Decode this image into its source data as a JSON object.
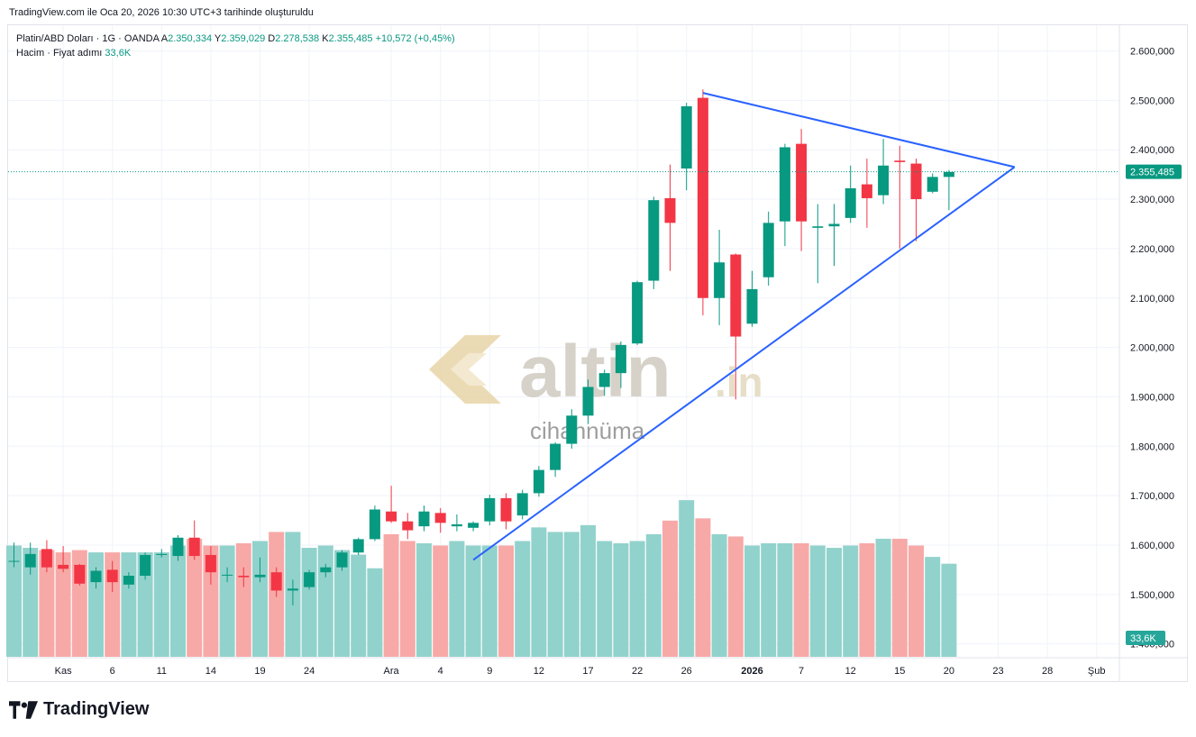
{
  "header": {
    "text": "TradingView.com ile Oca 20, 2026 10:30 UTC+3 tarihinde oluşturuldu"
  },
  "legend": {
    "symbol": "Platin/ABD Doları · 1G · OANDA",
    "a_label": "A",
    "a_value": "2.350,334",
    "y_label": "Y",
    "y_value": "2.359,029",
    "d_label": "D",
    "d_value": "2.278,538",
    "k_label": "K",
    "k_value": "2.355,485",
    "change": "+10,572 (+0,45%)",
    "volume_label": "Hacim · Fiyat adımı",
    "volume_value": "33,6K"
  },
  "price_badge": "2.355,485",
  "volume_badge": "33,6K",
  "watermark": {
    "brand": "altin",
    "suffix": ".in",
    "sub": "cihannüma"
  },
  "footer": {
    "brand": "TradingView"
  },
  "colors": {
    "up": "#089981",
    "down": "#f23645",
    "up_volume": "#92d2cc",
    "down_volume": "#f7a9a7",
    "trendline": "#2962ff"
  },
  "chart_data": {
    "type": "candlestick",
    "y_ticks": [
      "2.600,000",
      "2.500,000",
      "2.400,000",
      "2.300,000",
      "2.200,000",
      "2.100,000",
      "2.000,000",
      "1.900,000",
      "1.800,000",
      "1.700,000",
      "1.600,000",
      "1.500,000",
      "1.400,000"
    ],
    "y_tick_values": [
      2600,
      2500,
      2400,
      2300,
      2200,
      2100,
      2000,
      1900,
      1800,
      1700,
      1600,
      1500,
      1400
    ],
    "ylim": [
      1370,
      2640
    ],
    "x_ticks": [
      {
        "label": "Kas",
        "index": 3
      },
      {
        "label": "6",
        "index": 6
      },
      {
        "label": "11",
        "index": 9
      },
      {
        "label": "14",
        "index": 12
      },
      {
        "label": "19",
        "index": 15
      },
      {
        "label": "24",
        "index": 18
      },
      {
        "label": "Ara",
        "index": 23
      },
      {
        "label": "4",
        "index": 26
      },
      {
        "label": "9",
        "index": 29
      },
      {
        "label": "12",
        "index": 32
      },
      {
        "label": "17",
        "index": 35
      },
      {
        "label": "22",
        "index": 38
      },
      {
        "label": "26",
        "index": 41
      },
      {
        "label": "2026",
        "index": 45
      },
      {
        "label": "7",
        "index": 48
      },
      {
        "label": "12",
        "index": 51
      },
      {
        "label": "15",
        "index": 54
      },
      {
        "label": "20",
        "index": 57
      },
      {
        "label": "23",
        "index": 60
      },
      {
        "label": "28",
        "index": 63
      },
      {
        "label": "Şub",
        "index": 66
      }
    ],
    "last_price": 2355.485,
    "candles": [
      {
        "o": 1568,
        "h": 1605,
        "l": 1555,
        "c": 1568,
        "v": 49
      },
      {
        "o": 1555,
        "h": 1605,
        "l": 1540,
        "c": 1582,
        "v": 48
      },
      {
        "o": 1592,
        "h": 1610,
        "l": 1545,
        "c": 1555,
        "v": 47
      },
      {
        "o": 1560,
        "h": 1598,
        "l": 1545,
        "c": 1552,
        "v": 46
      },
      {
        "o": 1560,
        "h": 1562,
        "l": 1518,
        "c": 1522,
        "v": 47
      },
      {
        "o": 1525,
        "h": 1555,
        "l": 1512,
        "c": 1548,
        "v": 46
      },
      {
        "o": 1550,
        "h": 1568,
        "l": 1505,
        "c": 1525,
        "v": 46
      },
      {
        "o": 1520,
        "h": 1545,
        "l": 1512,
        "c": 1538,
        "v": 46
      },
      {
        "o": 1538,
        "h": 1585,
        "l": 1530,
        "c": 1580,
        "v": 46
      },
      {
        "o": 1580,
        "h": 1592,
        "l": 1575,
        "c": 1582,
        "v": 46
      },
      {
        "o": 1578,
        "h": 1620,
        "l": 1568,
        "c": 1615,
        "v": 49
      },
      {
        "o": 1615,
        "h": 1650,
        "l": 1570,
        "c": 1578,
        "v": 52
      },
      {
        "o": 1580,
        "h": 1598,
        "l": 1520,
        "c": 1545,
        "v": 49
      },
      {
        "o": 1540,
        "h": 1555,
        "l": 1525,
        "c": 1540,
        "v": 49
      },
      {
        "o": 1538,
        "h": 1555,
        "l": 1515,
        "c": 1535,
        "v": 50
      },
      {
        "o": 1535,
        "h": 1575,
        "l": 1525,
        "c": 1540,
        "v": 51
      },
      {
        "o": 1545,
        "h": 1555,
        "l": 1495,
        "c": 1508,
        "v": 55
      },
      {
        "o": 1508,
        "h": 1530,
        "l": 1478,
        "c": 1512,
        "v": 55
      },
      {
        "o": 1515,
        "h": 1550,
        "l": 1510,
        "c": 1545,
        "v": 48
      },
      {
        "o": 1545,
        "h": 1562,
        "l": 1535,
        "c": 1555,
        "v": 49
      },
      {
        "o": 1555,
        "h": 1590,
        "l": 1548,
        "c": 1585,
        "v": 47
      },
      {
        "o": 1585,
        "h": 1615,
        "l": 1580,
        "c": 1612,
        "v": 45
      },
      {
        "o": 1612,
        "h": 1680,
        "l": 1608,
        "c": 1672,
        "v": 39
      },
      {
        "o": 1668,
        "h": 1720,
        "l": 1645,
        "c": 1648,
        "v": 54
      },
      {
        "o": 1648,
        "h": 1665,
        "l": 1612,
        "c": 1630,
        "v": 51
      },
      {
        "o": 1638,
        "h": 1680,
        "l": 1628,
        "c": 1668,
        "v": 50
      },
      {
        "o": 1665,
        "h": 1675,
        "l": 1625,
        "c": 1645,
        "v": 49
      },
      {
        "o": 1638,
        "h": 1662,
        "l": 1628,
        "c": 1642,
        "v": 51
      },
      {
        "o": 1635,
        "h": 1648,
        "l": 1628,
        "c": 1645,
        "v": 49
      },
      {
        "o": 1648,
        "h": 1702,
        "l": 1640,
        "c": 1695,
        "v": 49
      },
      {
        "o": 1695,
        "h": 1705,
        "l": 1632,
        "c": 1648,
        "v": 49
      },
      {
        "o": 1660,
        "h": 1712,
        "l": 1652,
        "c": 1705,
        "v": 51
      },
      {
        "o": 1705,
        "h": 1760,
        "l": 1698,
        "c": 1752,
        "v": 57
      },
      {
        "o": 1752,
        "h": 1808,
        "l": 1738,
        "c": 1805,
        "v": 55
      },
      {
        "o": 1805,
        "h": 1875,
        "l": 1795,
        "c": 1862,
        "v": 55
      },
      {
        "o": 1862,
        "h": 1935,
        "l": 1845,
        "c": 1920,
        "v": 58
      },
      {
        "o": 1920,
        "h": 1955,
        "l": 1902,
        "c": 1948,
        "v": 51
      },
      {
        "o": 1948,
        "h": 2012,
        "l": 1918,
        "c": 2005,
        "v": 50
      },
      {
        "o": 2008,
        "h": 2135,
        "l": 2005,
        "c": 2132,
        "v": 51
      },
      {
        "o": 2135,
        "h": 2305,
        "l": 2118,
        "c": 2298,
        "v": 54
      },
      {
        "o": 2302,
        "h": 2370,
        "l": 2155,
        "c": 2252,
        "v": 60
      },
      {
        "o": 2362,
        "h": 2495,
        "l": 2318,
        "c": 2488,
        "v": 69
      },
      {
        "o": 2505,
        "h": 2522,
        "l": 2065,
        "c": 2100,
        "v": 61
      },
      {
        "o": 2100,
        "h": 2238,
        "l": 2045,
        "c": 2172,
        "v": 54
      },
      {
        "o": 2188,
        "h": 2190,
        "l": 1895,
        "c": 2022,
        "v": 53
      },
      {
        "o": 2048,
        "h": 2155,
        "l": 2042,
        "c": 2118,
        "v": 49
      },
      {
        "o": 2142,
        "h": 2275,
        "l": 2125,
        "c": 2252,
        "v": 50
      },
      {
        "o": 2255,
        "h": 2412,
        "l": 2205,
        "c": 2405,
        "v": 50
      },
      {
        "o": 2412,
        "h": 2442,
        "l": 2195,
        "c": 2255,
        "v": 50
      },
      {
        "o": 2242,
        "h": 2290,
        "l": 2130,
        "c": 2245,
        "v": 49
      },
      {
        "o": 2245,
        "h": 2290,
        "l": 2165,
        "c": 2250,
        "v": 48
      },
      {
        "o": 2262,
        "h": 2368,
        "l": 2252,
        "c": 2322,
        "v": 49
      },
      {
        "o": 2330,
        "h": 2382,
        "l": 2242,
        "c": 2302,
        "v": 50
      },
      {
        "o": 2308,
        "h": 2422,
        "l": 2290,
        "c": 2368,
        "v": 52
      },
      {
        "o": 2378,
        "h": 2408,
        "l": 2200,
        "c": 2375,
        "v": 52
      },
      {
        "o": 2372,
        "h": 2382,
        "l": 2215,
        "c": 2300,
        "v": 49
      },
      {
        "o": 2315,
        "h": 2352,
        "l": 2312,
        "c": 2345,
        "v": 44
      },
      {
        "o": 2345,
        "h": 2359,
        "l": 2278,
        "c": 2355,
        "v": 41
      }
    ],
    "trendlines": [
      {
        "from": {
          "index": 42,
          "price": 2515
        },
        "to": {
          "index": 61,
          "price": 2365
        }
      },
      {
        "from": {
          "index": 28,
          "price": 1570
        },
        "to": {
          "index": 61,
          "price": 2365
        }
      }
    ]
  }
}
